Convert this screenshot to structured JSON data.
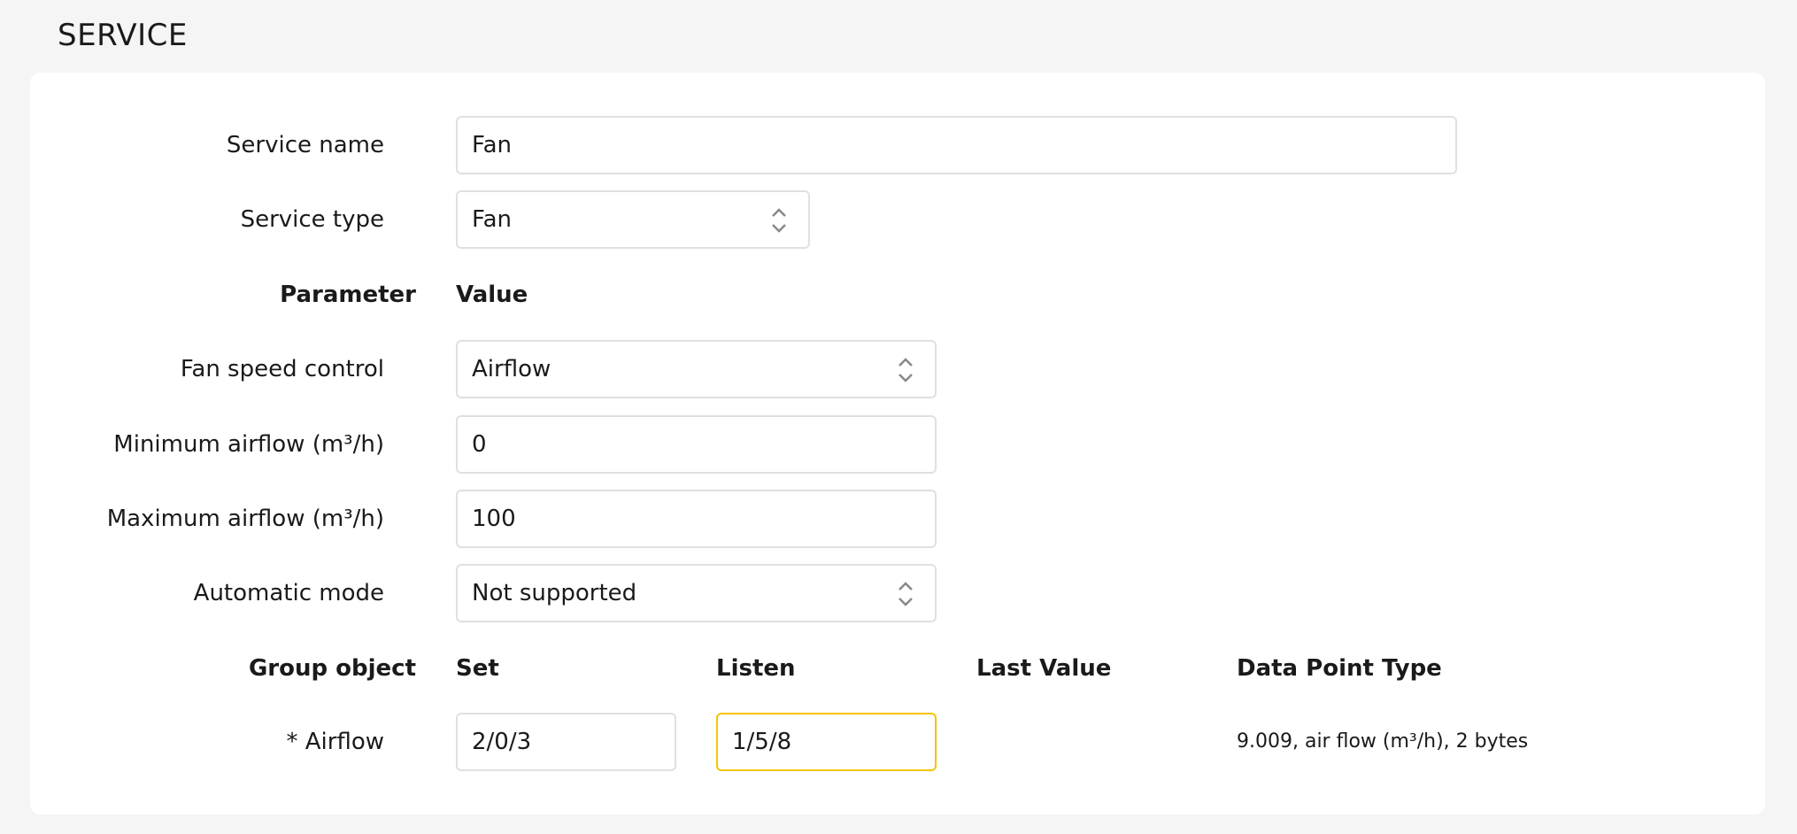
{
  "title": "SERVICE",
  "service_name": {
    "label": "Service name",
    "value": "Fan"
  },
  "service_type": {
    "label": "Service type",
    "value": "Fan"
  },
  "params_header": {
    "parameter": "Parameter",
    "value": "Value"
  },
  "params": [
    {
      "label": "Fan speed control",
      "value": "Airflow",
      "type": "select"
    },
    {
      "label": "Minimum airflow (m³/h)",
      "value": "0",
      "type": "input"
    },
    {
      "label": "Maximum airflow (m³/h)",
      "value": "100",
      "type": "input"
    },
    {
      "label": "Automatic mode",
      "value": "Not supported",
      "type": "select"
    }
  ],
  "group_header": {
    "group_object": "Group object",
    "set": "Set",
    "listen": "Listen",
    "last_value": "Last Value",
    "dpt": "Data Point Type"
  },
  "group_rows": [
    {
      "label": "* Airflow",
      "set": "2/0/3",
      "listen": "1/5/8",
      "last_value": "",
      "dpt": "9.009, air flow (m³/h), 2 bytes"
    }
  ],
  "colors": {
    "focus_border": "#f5c400",
    "background": "#f5f5f5",
    "card": "#ffffff"
  },
  "icons": {
    "select": "chevron-up-down-icon"
  }
}
